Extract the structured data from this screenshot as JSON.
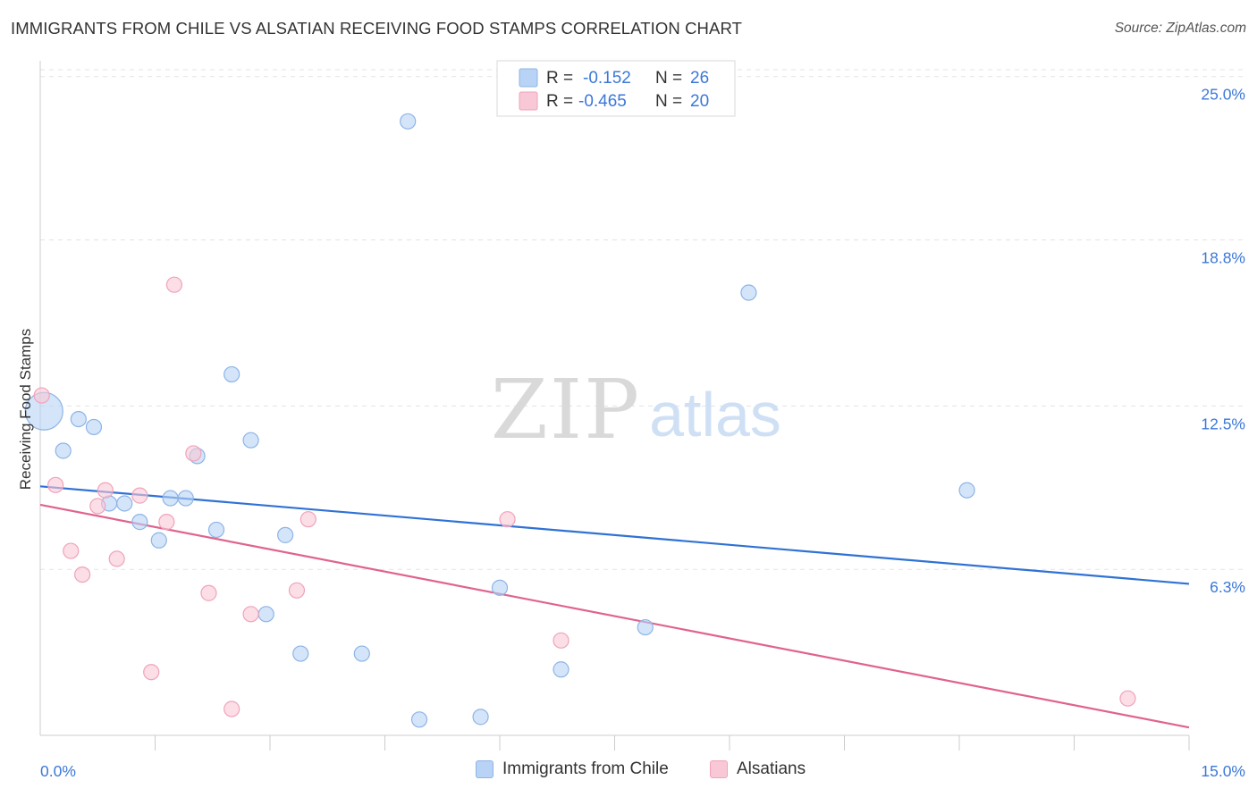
{
  "header": {
    "title": "IMMIGRANTS FROM CHILE VS ALSATIAN RECEIVING FOOD STAMPS CORRELATION CHART",
    "source": "Source: ZipAtlas.com"
  },
  "watermark": {
    "zip": "ZIP",
    "atlas": "atlas"
  },
  "colors": {
    "blue_fill": "#b8d3f5",
    "blue_stroke": "#8db4e6",
    "blue_line": "#2f72d4",
    "pink_fill": "#f8c8d6",
    "pink_stroke": "#f0a3ba",
    "pink_line": "#e0638d",
    "value_text": "#3b78d8"
  },
  "stats_legend": {
    "rows": [
      {
        "r_label": "R = ",
        "r_value": "-0.152",
        "n_label": "N = ",
        "n_value": "26"
      },
      {
        "r_label": "R = ",
        "r_value": "-0.465",
        "n_label": "N = ",
        "n_value": "20"
      }
    ]
  },
  "bottom_legend": {
    "items": [
      "Immigrants from Chile",
      "Alsatians"
    ]
  },
  "chart_data": {
    "type": "scatter",
    "title": "IMMIGRANTS FROM CHILE VS ALSATIAN RECEIVING FOOD STAMPS CORRELATION CHART",
    "xlabel": "",
    "ylabel": "Receiving Food Stamps",
    "xlim": [
      0,
      15
    ],
    "ylim": [
      0,
      25.6
    ],
    "x_tick_labels": [
      "0.0%",
      "15.0%"
    ],
    "y_ticks": [
      6.3,
      12.5,
      18.8,
      25.0
    ],
    "y_tick_labels": [
      "6.3%",
      "12.5%",
      "18.8%",
      "25.0%"
    ],
    "grid": true,
    "legend_position": "top-center",
    "series": [
      {
        "name": "Immigrants from Chile",
        "r": -0.152,
        "n": 26,
        "trend": {
          "x": [
            0,
            15
          ],
          "y": [
            9.45,
            5.75
          ]
        },
        "points": [
          {
            "x": 0.05,
            "y": 12.3,
            "big": true
          },
          {
            "x": 0.3,
            "y": 10.8
          },
          {
            "x": 0.5,
            "y": 12.0
          },
          {
            "x": 0.7,
            "y": 11.7
          },
          {
            "x": 0.9,
            "y": 8.8
          },
          {
            "x": 1.1,
            "y": 8.8
          },
          {
            "x": 1.3,
            "y": 8.1
          },
          {
            "x": 1.55,
            "y": 7.4
          },
          {
            "x": 1.7,
            "y": 9.0
          },
          {
            "x": 1.9,
            "y": 9.0
          },
          {
            "x": 2.05,
            "y": 10.6
          },
          {
            "x": 2.3,
            "y": 7.8
          },
          {
            "x": 2.5,
            "y": 13.7
          },
          {
            "x": 2.75,
            "y": 11.2
          },
          {
            "x": 2.95,
            "y": 4.6
          },
          {
            "x": 3.2,
            "y": 7.6
          },
          {
            "x": 3.4,
            "y": 3.1
          },
          {
            "x": 4.2,
            "y": 3.1
          },
          {
            "x": 4.8,
            "y": 23.3
          },
          {
            "x": 4.95,
            "y": 0.6
          },
          {
            "x": 5.75,
            "y": 0.7
          },
          {
            "x": 6.0,
            "y": 5.6
          },
          {
            "x": 6.8,
            "y": 2.5
          },
          {
            "x": 7.9,
            "y": 4.1
          },
          {
            "x": 9.25,
            "y": 16.8
          },
          {
            "x": 12.1,
            "y": 9.3
          }
        ]
      },
      {
        "name": "Alsatians",
        "r": -0.465,
        "n": 20,
        "trend": {
          "x": [
            0,
            15
          ],
          "y": [
            8.75,
            0.3
          ]
        },
        "points": [
          {
            "x": 0.02,
            "y": 12.9
          },
          {
            "x": 0.2,
            "y": 9.5
          },
          {
            "x": 0.4,
            "y": 7.0
          },
          {
            "x": 0.55,
            "y": 6.1
          },
          {
            "x": 0.75,
            "y": 8.7
          },
          {
            "x": 0.85,
            "y": 9.3
          },
          {
            "x": 1.0,
            "y": 6.7
          },
          {
            "x": 1.3,
            "y": 9.1
          },
          {
            "x": 1.45,
            "y": 2.4
          },
          {
            "x": 1.65,
            "y": 8.1
          },
          {
            "x": 1.75,
            "y": 17.1
          },
          {
            "x": 2.0,
            "y": 10.7
          },
          {
            "x": 2.2,
            "y": 5.4
          },
          {
            "x": 2.5,
            "y": 1.0
          },
          {
            "x": 2.75,
            "y": 4.6
          },
          {
            "x": 3.35,
            "y": 5.5
          },
          {
            "x": 3.5,
            "y": 8.2
          },
          {
            "x": 6.1,
            "y": 8.2
          },
          {
            "x": 6.8,
            "y": 3.6
          },
          {
            "x": 14.2,
            "y": 1.4
          }
        ]
      }
    ]
  }
}
